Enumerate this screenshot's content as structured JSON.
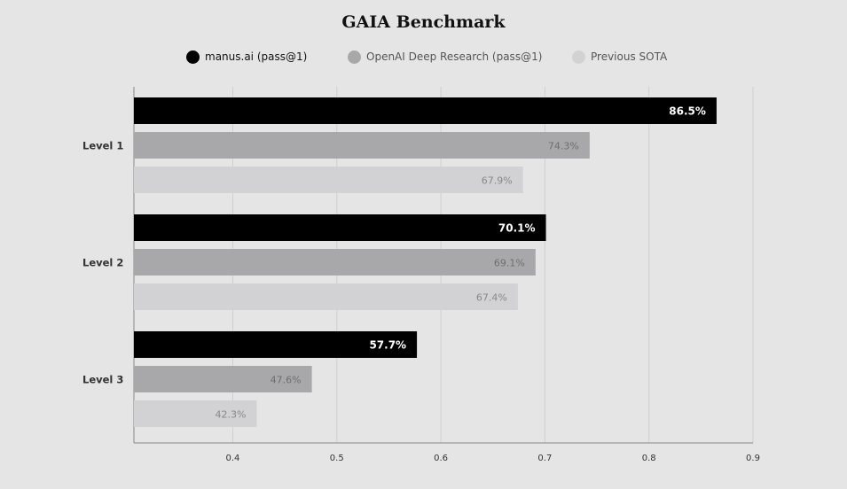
{
  "chart_data": {
    "type": "bar",
    "orientation": "horizontal",
    "title": "GAIA Benchmark",
    "categories": [
      "Level 1",
      "Level 2",
      "Level 3"
    ],
    "series": [
      {
        "name": "manus.ai (pass@1)",
        "color": "#000000",
        "values": [
          0.865,
          0.701,
          0.577
        ],
        "labels": [
          "86.5%",
          "70.1%",
          "57.7%"
        ],
        "label_color": "#ffffff"
      },
      {
        "name": "OpenAI Deep Research (pass@1)",
        "color": "#a8a8aa",
        "values": [
          0.743,
          0.691,
          0.476
        ],
        "labels": [
          "74.3%",
          "69.1%",
          "47.6%"
        ],
        "label_color": "#6e6e70"
      },
      {
        "name": "Previous SOTA",
        "color": "#d2d2d4",
        "values": [
          0.679,
          0.674,
          0.423
        ],
        "labels": [
          "67.9%",
          "67.4%",
          "42.3%"
        ],
        "label_color": "#888888"
      }
    ],
    "xlim": [
      0.305,
      0.9
    ],
    "xticks": [
      "0.4",
      "0.5",
      "0.6",
      "0.7",
      "0.8",
      "0.9"
    ],
    "grid": true,
    "legend_position": "top"
  }
}
